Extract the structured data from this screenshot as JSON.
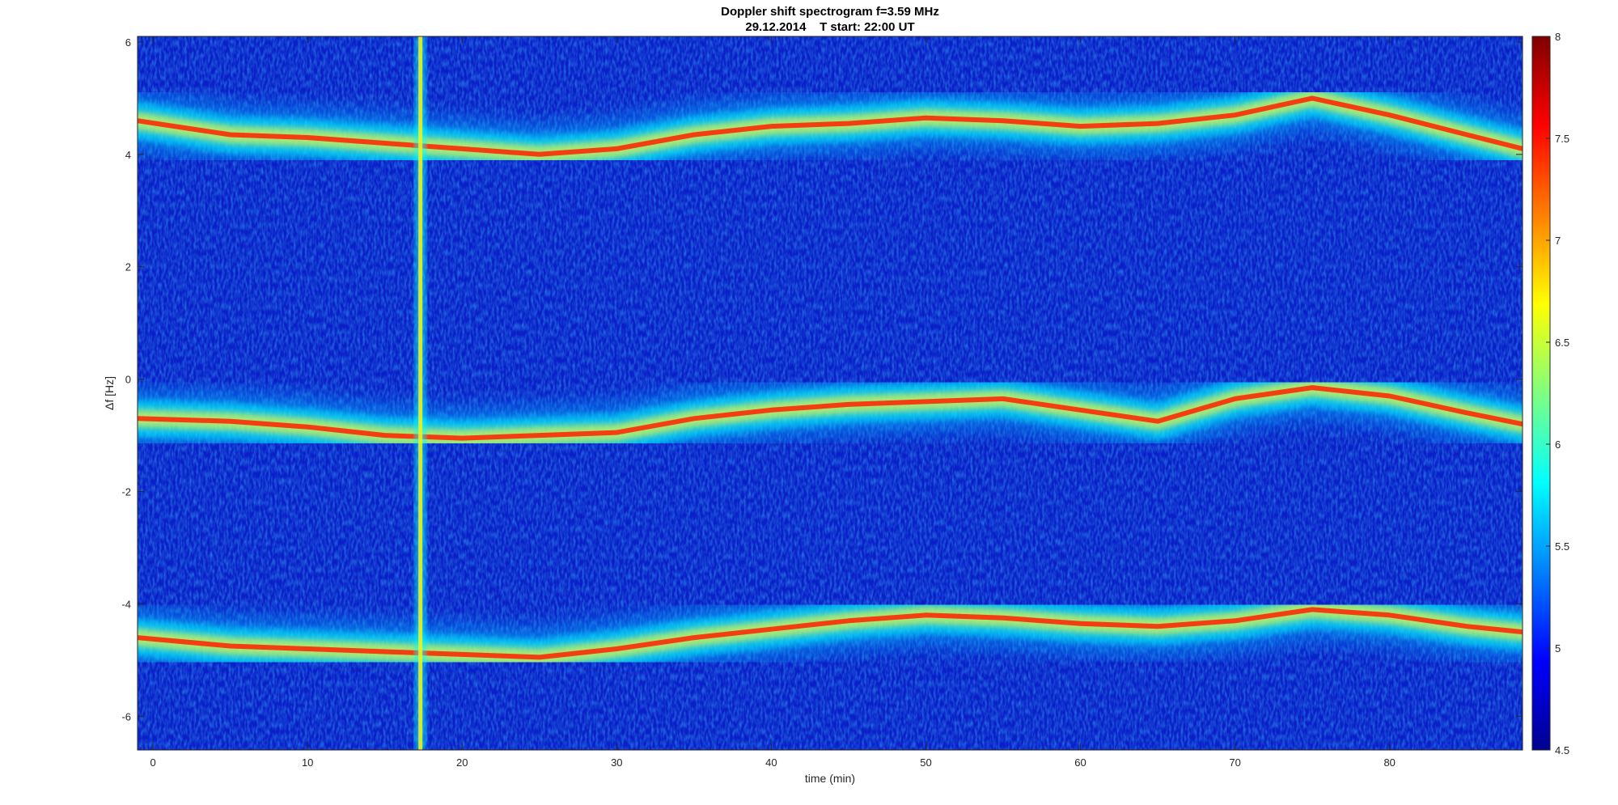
{
  "chart_data": {
    "type": "heatmap",
    "title": "Doppler shift spectrogram f=3.59 MHz",
    "subtitle": "29.12.2014    T start: 22:00 UT",
    "xlabel": "time (min)",
    "ylabel": "Δf [Hz]",
    "xlim": [
      -1,
      88.6
    ],
    "ylim": [
      -6.6,
      6.1
    ],
    "xticks": [
      0,
      10,
      20,
      30,
      40,
      50,
      60,
      70,
      80
    ],
    "yticks": [
      6,
      4,
      2,
      0,
      -2,
      -4,
      -6
    ],
    "colorbar": {
      "colormap": "jet",
      "range": [
        4.5,
        8
      ],
      "ticks": [
        8,
        7.5,
        7,
        6.5,
        6,
        5.5,
        5,
        4.5
      ]
    },
    "grid": false,
    "traces": [
      {
        "x": [
          -1,
          5,
          10,
          15,
          20,
          25,
          30,
          35,
          40,
          45,
          50,
          55,
          60,
          65,
          70,
          75,
          80,
          85,
          88.6
        ],
        "y": [
          4.6,
          4.35,
          4.3,
          4.2,
          4.1,
          4.0,
          4.1,
          4.35,
          4.5,
          4.55,
          4.65,
          4.6,
          4.5,
          4.55,
          4.7,
          5.0,
          4.7,
          4.35,
          4.1
        ]
      },
      {
        "x": [
          -1,
          5,
          10,
          15,
          20,
          25,
          30,
          35,
          40,
          45,
          50,
          55,
          60,
          65,
          70,
          75,
          80,
          85,
          88.6
        ],
        "y": [
          -0.7,
          -0.75,
          -0.85,
          -1.0,
          -1.05,
          -1.0,
          -0.95,
          -0.7,
          -0.55,
          -0.45,
          -0.4,
          -0.35,
          -0.55,
          -0.75,
          -0.35,
          -0.15,
          -0.3,
          -0.6,
          -0.8
        ]
      },
      {
        "x": [
          -1,
          5,
          10,
          15,
          20,
          25,
          30,
          35,
          40,
          45,
          50,
          55,
          60,
          65,
          70,
          75,
          80,
          85,
          88.6
        ],
        "y": [
          -4.6,
          -4.75,
          -4.8,
          -4.85,
          -4.9,
          -4.95,
          -4.8,
          -4.6,
          -4.45,
          -4.3,
          -4.2,
          -4.25,
          -4.35,
          -4.4,
          -4.3,
          -4.1,
          -4.2,
          -4.4,
          -4.5
        ]
      }
    ],
    "vertical_band_x": 17.3
  }
}
